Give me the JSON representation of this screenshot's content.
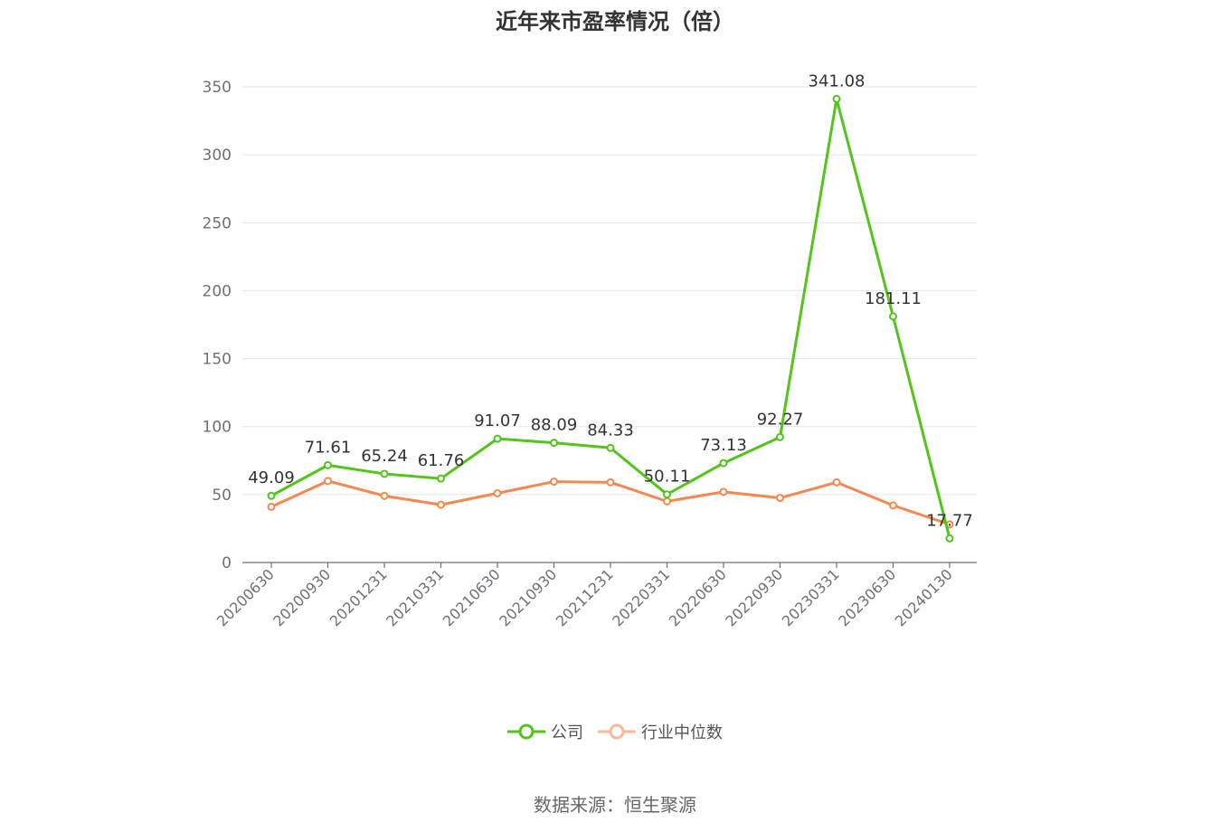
{
  "chart_data": {
    "type": "line",
    "title": "近年来市盈率情况（倍）",
    "categories": [
      "20200630",
      "20200930",
      "20201231",
      "20210331",
      "20210630",
      "20210930",
      "20211231",
      "20220331",
      "20220630",
      "20220930",
      "20230331",
      "20230630",
      "20240130"
    ],
    "series": [
      {
        "name": "公司",
        "color": "#52c41a",
        "values": [
          49.09,
          71.61,
          65.24,
          61.76,
          91.07,
          88.09,
          84.33,
          50.11,
          73.13,
          92.27,
          341.08,
          181.11,
          17.77
        ],
        "show_labels": true,
        "labels": [
          "49.09",
          "71.61",
          "65.24",
          "61.76",
          "91.07",
          "88.09",
          "84.33",
          "50.11",
          "73.13",
          "92.27",
          "341.08",
          "181.11",
          "17.77"
        ]
      },
      {
        "name": "行业中位数",
        "color": "#f5884f",
        "values": [
          41,
          60,
          49,
          42.5,
          51,
          59.5,
          59,
          45,
          52,
          47.5,
          59,
          42,
          28
        ],
        "show_labels": false
      }
    ],
    "ylim": [
      0,
      350
    ],
    "yticks": [
      "0",
      "50",
      "100",
      "150",
      "200",
      "250",
      "300",
      "350"
    ],
    "grid": true,
    "legend_position": "bottom"
  },
  "footer": {
    "source": "数据来源：恒生聚源"
  }
}
